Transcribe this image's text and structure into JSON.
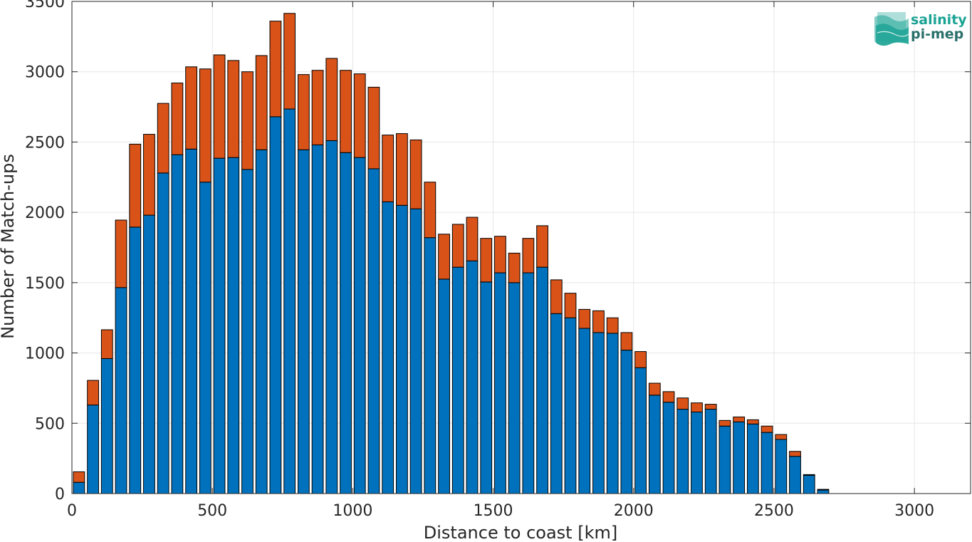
{
  "chart_data": {
    "type": "bar",
    "stacked": true,
    "xlabel": "Distance to coast [km]",
    "ylabel": "Number of Match-ups",
    "xlim": [
      0,
      3200
    ],
    "ylim": [
      0,
      3500
    ],
    "xticks": [
      0,
      500,
      1000,
      1500,
      2000,
      2500,
      3000
    ],
    "yticks": [
      0,
      500,
      1000,
      1500,
      2000,
      2500,
      3000,
      3500
    ],
    "grid": true,
    "bin_width_km": 50,
    "x": [
      25,
      75,
      125,
      175,
      225,
      275,
      325,
      375,
      425,
      475,
      525,
      575,
      625,
      675,
      725,
      775,
      825,
      875,
      925,
      975,
      1025,
      1075,
      1125,
      1175,
      1225,
      1275,
      1325,
      1375,
      1425,
      1475,
      1525,
      1575,
      1625,
      1675,
      1725,
      1775,
      1825,
      1875,
      1925,
      1975,
      2025,
      2075,
      2125,
      2175,
      2225,
      2275,
      2325,
      2375,
      2425,
      2475,
      2525,
      2575,
      2625,
      2675
    ],
    "series": [
      {
        "color": "#0072bd",
        "values": [
          80,
          630,
          960,
          1465,
          1895,
          1980,
          2280,
          2410,
          2450,
          2215,
          2385,
          2390,
          2305,
          2445,
          2680,
          2735,
          2445,
          2480,
          2510,
          2425,
          2390,
          2310,
          2075,
          2050,
          2025,
          1820,
          1525,
          1610,
          1655,
          1505,
          1570,
          1500,
          1570,
          1610,
          1280,
          1250,
          1175,
          1145,
          1140,
          1020,
          895,
          700,
          650,
          600,
          580,
          600,
          480,
          510,
          495,
          435,
          385,
          265,
          130,
          25
        ]
      },
      {
        "color": "#d95319",
        "values": [
          75,
          175,
          205,
          480,
          590,
          575,
          495,
          510,
          585,
          805,
          735,
          690,
          695,
          670,
          680,
          680,
          535,
          530,
          585,
          585,
          595,
          580,
          475,
          510,
          490,
          395,
          320,
          305,
          310,
          310,
          260,
          210,
          245,
          295,
          240,
          175,
          135,
          155,
          110,
          125,
          115,
          85,
          75,
          80,
          65,
          35,
          40,
          35,
          30,
          45,
          35,
          35,
          5,
          5
        ]
      }
    ]
  },
  "logo": {
    "line1": "salinity",
    "line2": "pi-mep",
    "color": "#1aa394"
  }
}
